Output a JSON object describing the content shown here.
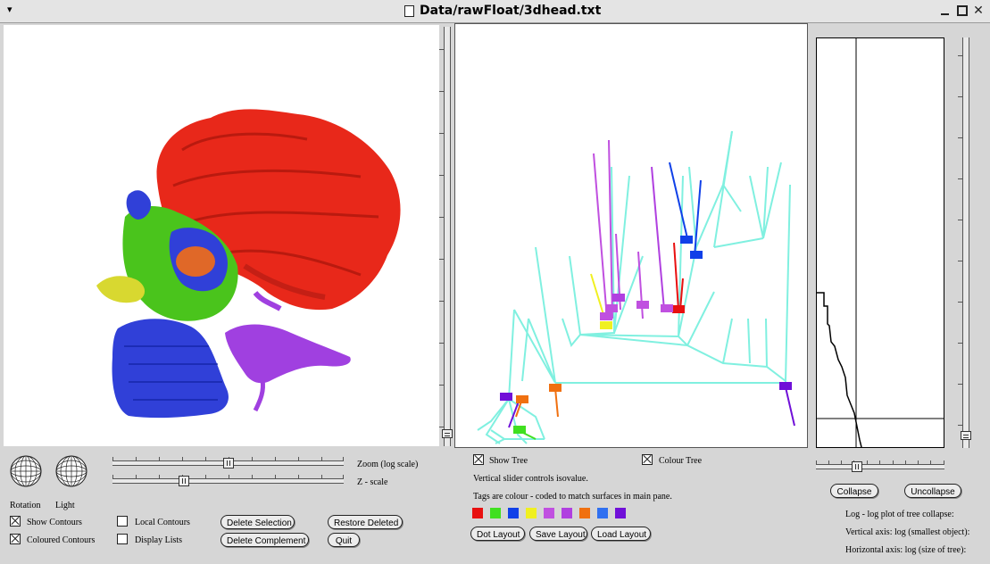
{
  "window": {
    "title": "Data/rawFloat/3dhead.txt",
    "menu_icon": "triangle-down-icon",
    "controls": [
      "minimize-icon",
      "maximize-icon",
      "close-icon"
    ]
  },
  "left_panel": {
    "zoom_label": "Zoom (log scale)",
    "zscale_label": "Z - scale",
    "zoom_value": 0.5,
    "zscale_value": 0.3,
    "rotation_label": "Rotation",
    "light_label": "Light",
    "checkboxes": [
      {
        "label": "Show Contours",
        "checked": true
      },
      {
        "label": "Coloured Contours",
        "checked": true
      },
      {
        "label": "Local Contours",
        "checked": false
      },
      {
        "label": "Display Lists",
        "checked": false
      }
    ],
    "buttons": {
      "delete_selection": "Delete Selection",
      "delete_complement": "Delete Complement",
      "restore_deleted": "Restore Deleted",
      "quit": "Quit"
    },
    "surface_colors": {
      "brain": "#e8281a",
      "skull_front": "#3040d8",
      "orbit": "#4ac41c",
      "nose": "#d8d830",
      "jaw": "#a040e0",
      "eye": "#e06828"
    }
  },
  "tree_panel": {
    "show_tree_label": "Show Tree",
    "show_tree_checked": true,
    "colour_tree_label": "Colour Tree",
    "colour_tree_checked": true,
    "info_line1": "Vertical slider controls isovalue.",
    "info_line2": "Tags are colour - coded to match surfaces in main pane.",
    "tag_colors": [
      "#e81010",
      "#40e020",
      "#1040e8",
      "#f0f020",
      "#c050e0",
      "#b040e0",
      "#f07010",
      "#3070f0",
      "#7010d8"
    ],
    "buttons": {
      "dot_layout": "Dot Layout",
      "save_layout": "Save Layout",
      "load_layout": "Load Layout"
    },
    "tree_color": "#80f0e0",
    "isovalue_fraction": 0.02
  },
  "plot_panel": {
    "buttons": {
      "collapse": "Collapse",
      "uncollapse": "Uncollapse"
    },
    "info_title": "Log - log plot of tree collapse:",
    "info_vertical": "Vertical axis: log (smallest object):",
    "info_horizontal": "Horizontal axis: log (size of tree):",
    "slider_value": 0.3,
    "right_slider_value": 0.02
  }
}
